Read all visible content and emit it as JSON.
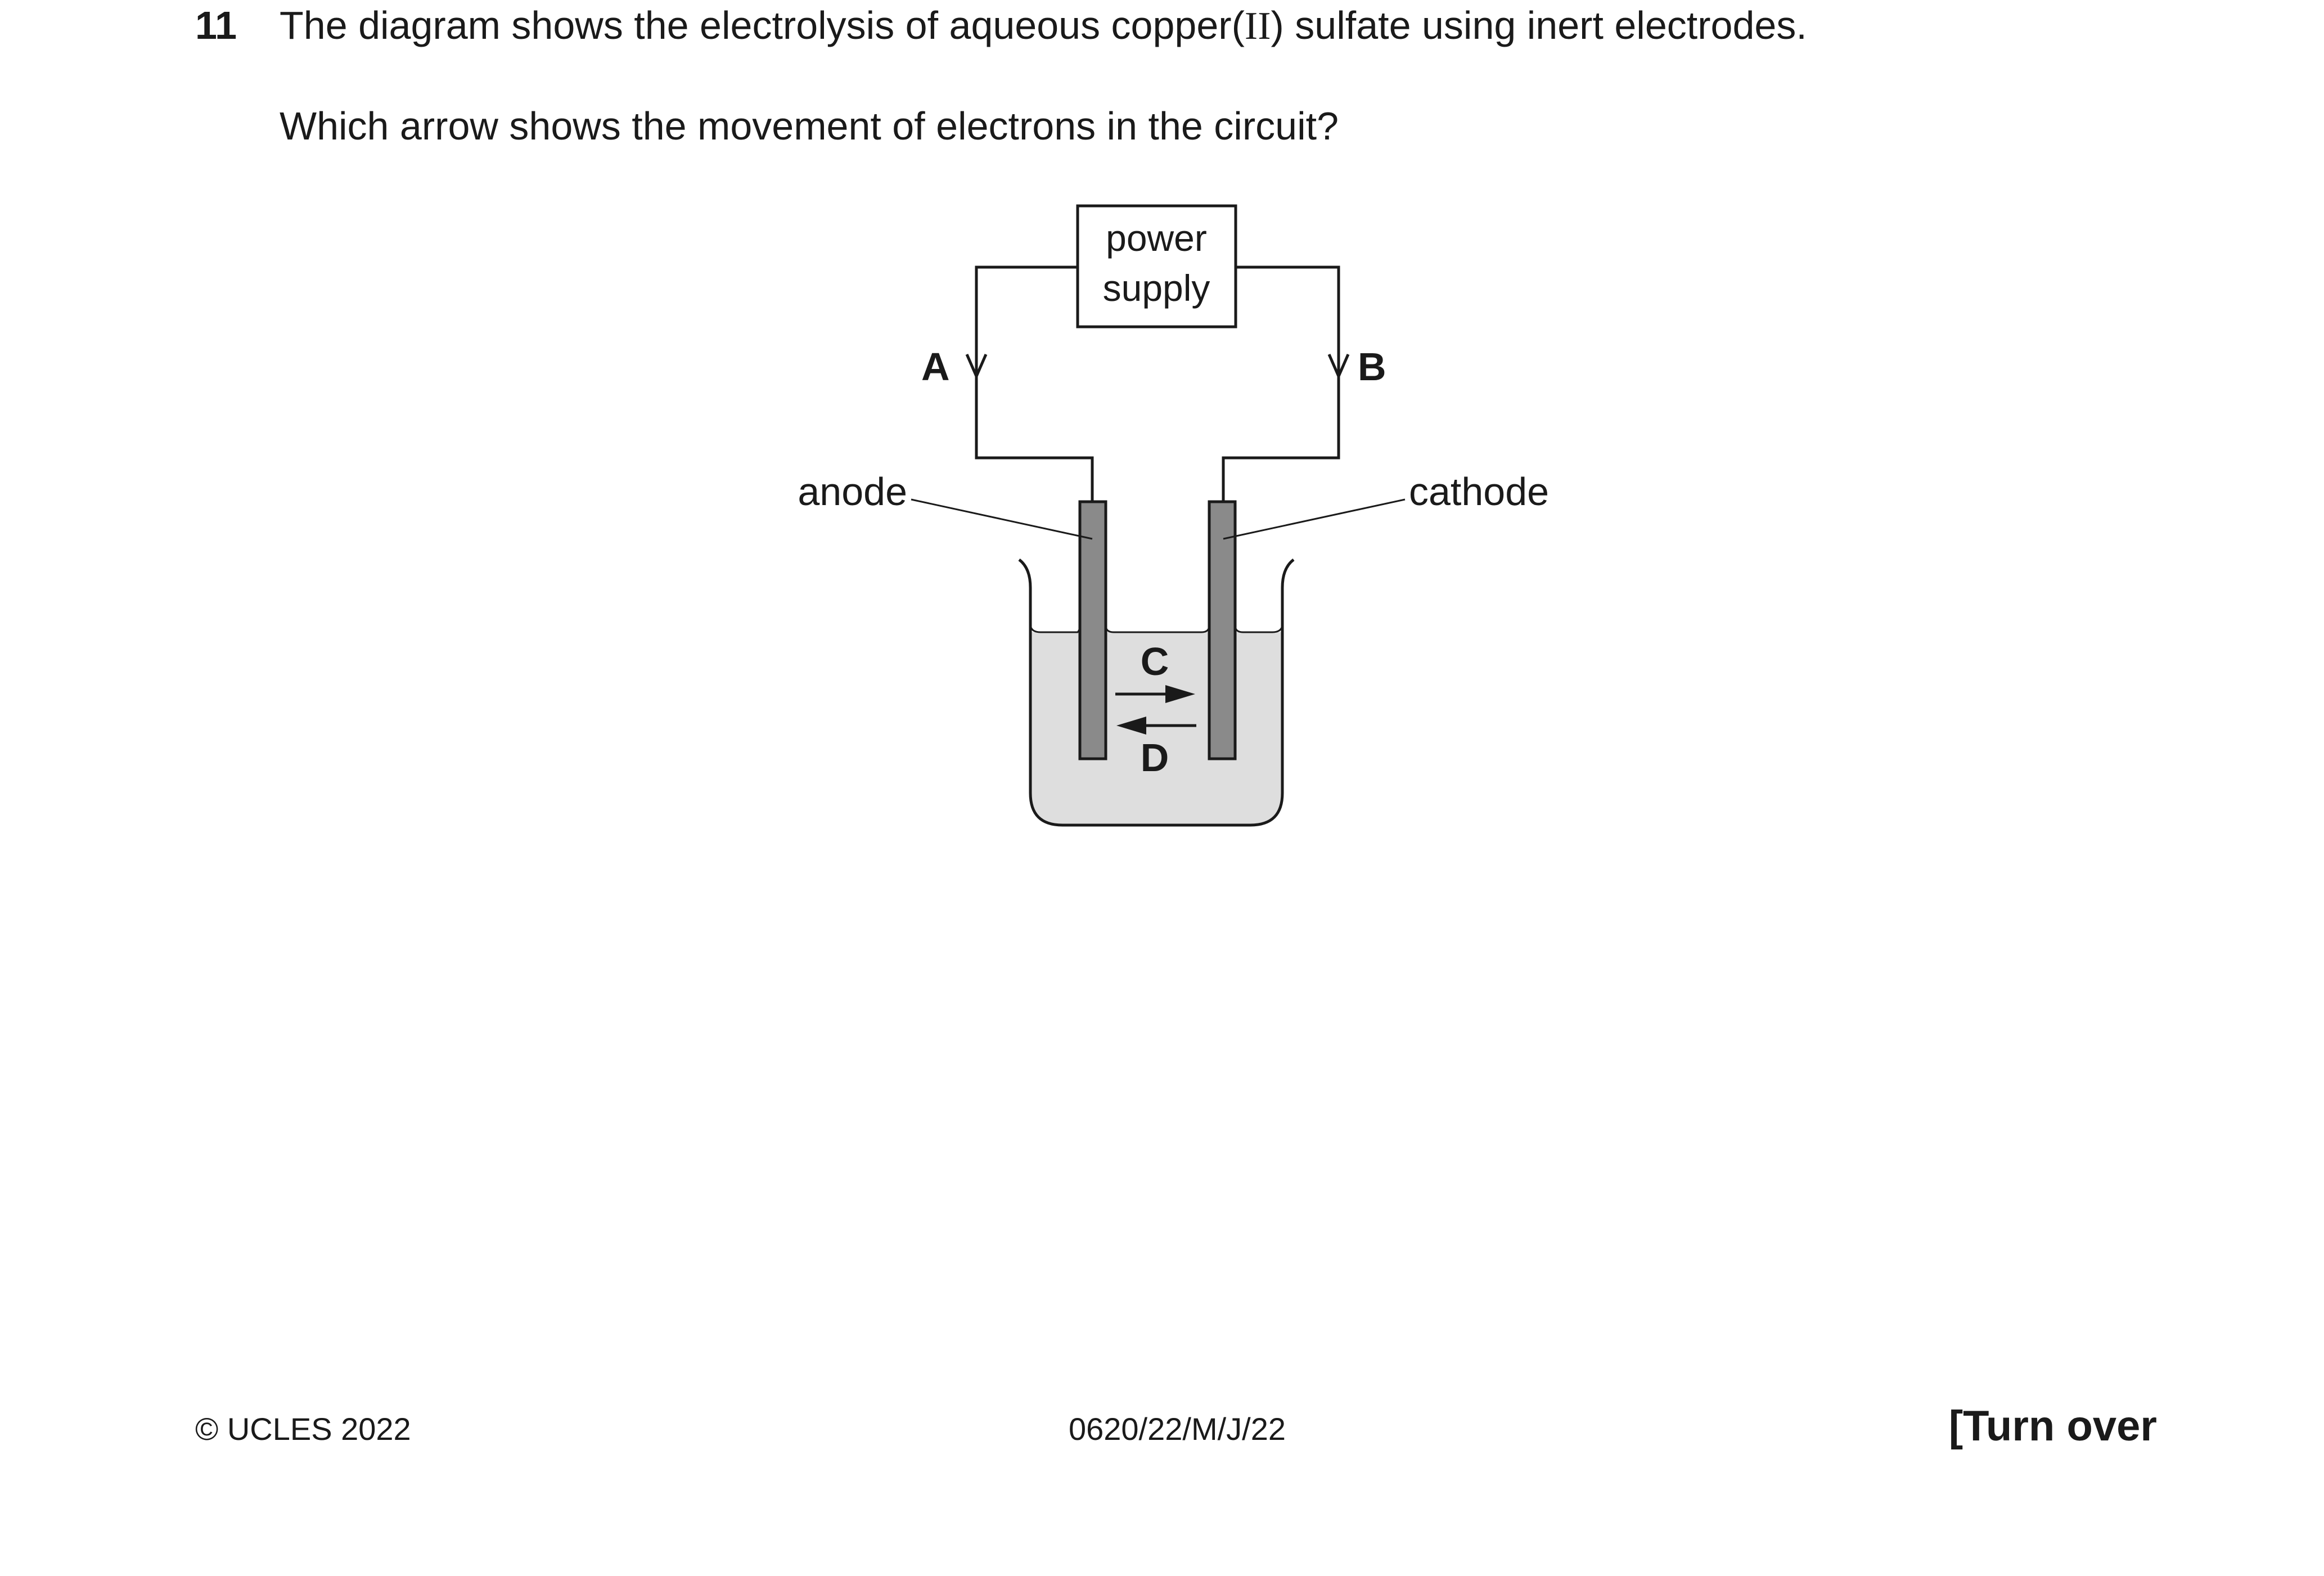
{
  "question": {
    "number": "11",
    "stem_prefix": "The diagram shows the electrolysis of aqueous copper(",
    "stem_roman": "II",
    "stem_suffix": ") sulfate using inert electrodes.",
    "prompt": "Which arrow shows the movement of electrons in the circuit?"
  },
  "diagram": {
    "power_supply_line1": "power",
    "power_supply_line2": "supply",
    "label_anode": "anode",
    "label_cathode": "cathode",
    "arrow_a": "A",
    "arrow_b": "B",
    "arrow_c": "C",
    "arrow_d": "D",
    "colors": {
      "electrolyte": "#dedede",
      "electrode": "#8a8a8a",
      "line": "#1a1a1a"
    }
  },
  "footer": {
    "copyright": "© UCLES 2022",
    "code": "0620/22/M/J/22",
    "turn_over": "[Turn over"
  }
}
